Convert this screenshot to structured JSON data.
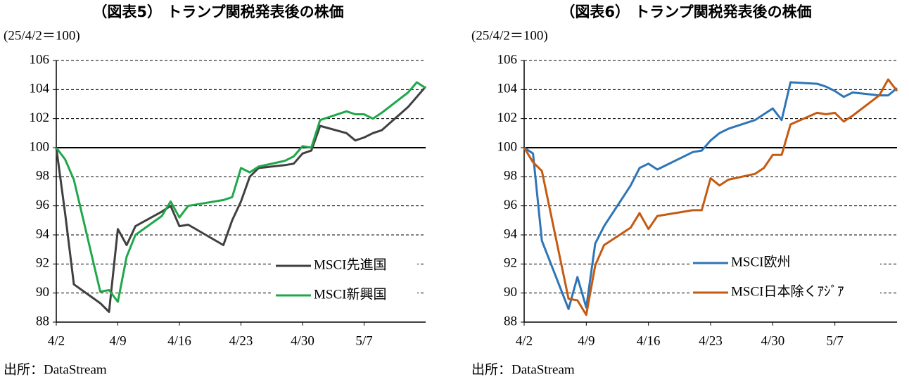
{
  "chart_data": [
    {
      "type": "line",
      "title": "（図表5） トランプ関税発表後の株価",
      "ylabel": "(25/4/2＝100)",
      "source": "出所：DataStream",
      "x": [
        0,
        1,
        2,
        5,
        6,
        7,
        8,
        9,
        12,
        13,
        14,
        15,
        19,
        20,
        21,
        22,
        23,
        26,
        27,
        28,
        29,
        30,
        33,
        34,
        35,
        36,
        37,
        40,
        41,
        42
      ],
      "xlim": [
        0,
        42
      ],
      "xticks": [
        {
          "value": 0,
          "label": "4/2"
        },
        {
          "value": 7,
          "label": "4/9"
        },
        {
          "value": 14,
          "label": "4/16"
        },
        {
          "value": 21,
          "label": "4/23"
        },
        {
          "value": 28,
          "label": "4/30"
        },
        {
          "value": 35,
          "label": "5/7"
        }
      ],
      "ylim": [
        88,
        106
      ],
      "yticks": [
        88,
        90,
        92,
        94,
        96,
        98,
        100,
        102,
        104,
        106
      ],
      "baseline": 100,
      "grid": true,
      "series": [
        {
          "name": "MSCI先進国",
          "color": "#404040",
          "values": [
            100,
            95.5,
            90.6,
            89.3,
            88.7,
            94.4,
            93.3,
            94.6,
            95.6,
            96.0,
            94.6,
            94.7,
            93.3,
            95.0,
            96.3,
            98.0,
            98.6,
            98.8,
            98.9,
            99.6,
            99.8,
            101.5,
            101.0,
            100.5,
            100.7,
            101.0,
            101.2,
            102.8,
            103.5,
            104.2
          ]
        },
        {
          "name": "MSCI新興国",
          "color": "#1FA84A",
          "values": [
            100,
            99.2,
            97.8,
            90.1,
            90.2,
            89.4,
            92.5,
            94.0,
            95.3,
            96.3,
            95.2,
            96.0,
            96.4,
            96.6,
            98.6,
            98.3,
            98.7,
            99.1,
            99.4,
            100.1,
            100.0,
            101.9,
            102.5,
            102.3,
            102.3,
            102.0,
            102.4,
            103.8,
            104.5,
            104.1
          ]
        }
      ]
    },
    {
      "type": "line",
      "title": "（図表6） トランプ関税発表後の株価",
      "ylabel": "(25/4/2＝100)",
      "source": "出所：DataStream",
      "x": [
        0,
        1,
        2,
        5,
        6,
        7,
        8,
        9,
        12,
        13,
        14,
        15,
        19,
        20,
        21,
        22,
        23,
        26,
        27,
        28,
        29,
        30,
        33,
        34,
        35,
        36,
        37,
        40,
        41,
        42
      ],
      "xlim": [
        0,
        42
      ],
      "xticks": [
        {
          "value": 0,
          "label": "4/2"
        },
        {
          "value": 7,
          "label": "4/9"
        },
        {
          "value": 14,
          "label": "4/16"
        },
        {
          "value": 21,
          "label": "4/23"
        },
        {
          "value": 28,
          "label": "4/30"
        },
        {
          "value": 35,
          "label": "5/7"
        }
      ],
      "ylim": [
        88,
        106
      ],
      "yticks": [
        88,
        90,
        92,
        94,
        96,
        98,
        100,
        102,
        104,
        106
      ],
      "baseline": 100,
      "grid": true,
      "series": [
        {
          "name": "MSCI欧州",
          "color": "#2E75B6",
          "values": [
            100,
            99.6,
            93.6,
            88.9,
            91.1,
            89.0,
            93.4,
            94.6,
            97.4,
            98.6,
            98.9,
            98.5,
            99.7,
            99.8,
            100.5,
            101.0,
            101.3,
            101.9,
            102.3,
            102.7,
            101.9,
            104.5,
            104.4,
            104.2,
            103.9,
            103.5,
            103.8,
            103.6,
            103.6,
            104.1
          ]
        },
        {
          "name": "MSCI日本除くｱｼﾞｱ",
          "color": "#C55A11",
          "values": [
            100,
            99.0,
            98.4,
            89.6,
            89.5,
            88.5,
            91.9,
            93.3,
            94.5,
            95.5,
            94.4,
            95.3,
            95.7,
            95.7,
            97.9,
            97.4,
            97.8,
            98.2,
            98.6,
            99.5,
            99.5,
            101.6,
            102.4,
            102.3,
            102.4,
            101.8,
            102.2,
            103.6,
            104.7,
            103.9
          ]
        }
      ]
    }
  ]
}
